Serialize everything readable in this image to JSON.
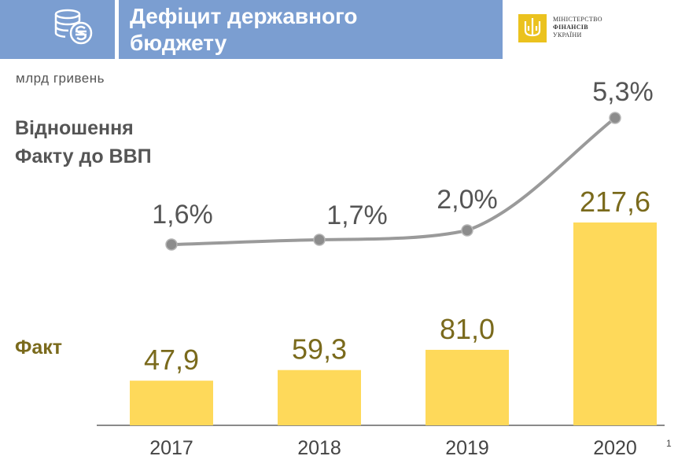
{
  "header": {
    "title_line1": "Дефіцит державного",
    "title_line2": "бюджету",
    "icon": "coins-hryvnia-icon",
    "logo": {
      "line1": "МІНІСТЕРСТВО",
      "line2": "ФІНАНСІВ",
      "line3": "УКРАЇНИ"
    }
  },
  "unit_label": "млрд гривень",
  "ratio_label_line1": "Відношення",
  "ratio_label_line2": "Факту до ВВП",
  "fact_label": "Факт",
  "footnote": "1",
  "colors": {
    "header_bg": "#7b9ed1",
    "bar": "#fed95a",
    "bar_label": "#7a6a1c",
    "line": "#9a9a9a",
    "text_dark": "#555555"
  },
  "chart_data": {
    "type": "bar+line",
    "categories": [
      "2017",
      "2018",
      "2019",
      "2020"
    ],
    "series": [
      {
        "type": "bar",
        "values": [
          47.9,
          59.3,
          81.0,
          217.6
        ],
        "labels": [
          "47,9",
          "59,3",
          "81,0",
          "217,6"
        ]
      },
      {
        "type": "line",
        "values": [
          1.6,
          1.7,
          2.0,
          5.3
        ],
        "labels": [
          "1,6%",
          "1,7%",
          "2,0%",
          "5,3%"
        ]
      }
    ],
    "grid": false
  }
}
